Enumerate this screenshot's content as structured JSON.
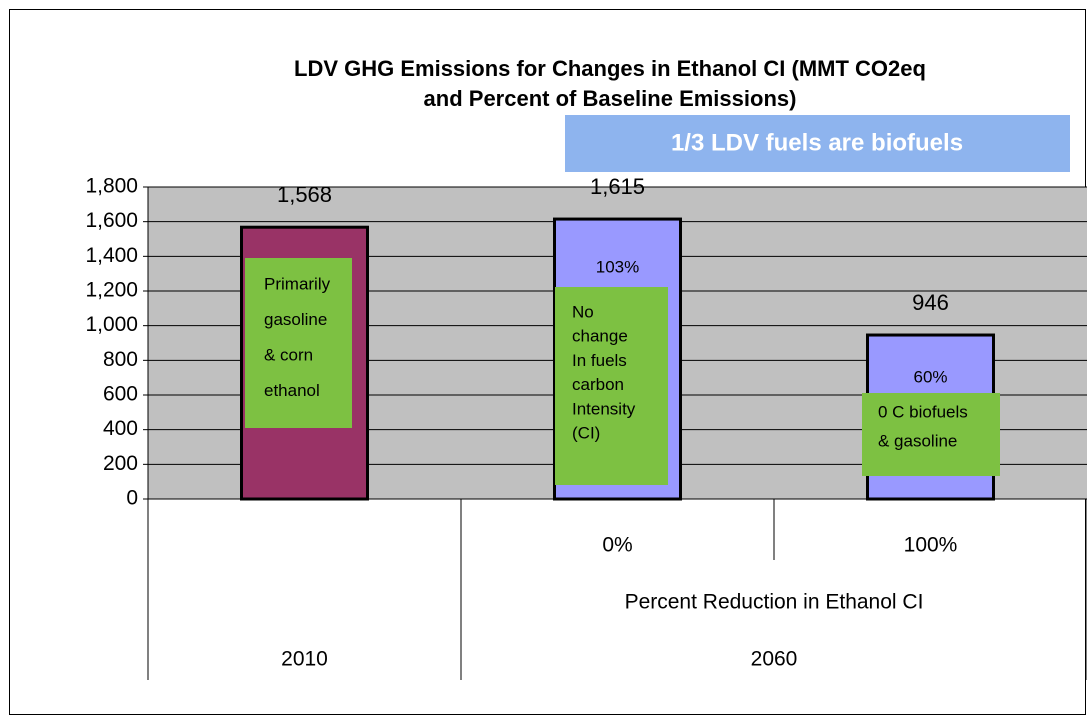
{
  "chart_data": {
    "type": "bar",
    "title": "LDV GHG Emissions for Changes in Ethanol CI (MMT CO2eq and Percent of Baseline Emissions)",
    "title_lines": [
      "LDV GHG Emissions for Changes in Ethanol CI (MMT CO2eq",
      "and Percent of Baseline Emissions)"
    ],
    "banner": "1/3 LDV fuels are biofuels",
    "x_label": "Percent Reduction in Ethanol CI",
    "categories": [
      null,
      "0%",
      "100%"
    ],
    "group_labels": [
      "2010",
      "2060"
    ],
    "values": [
      1568,
      1615,
      946
    ],
    "value_labels": [
      "1,568",
      "1,615",
      "946"
    ],
    "colors": [
      "#993366",
      "#9999ff",
      "#9999ff"
    ],
    "percent_labels": [
      null,
      "103%",
      "60%"
    ],
    "annotations": [
      [
        "Primarily",
        "gasoline",
        "& corn",
        "ethanol"
      ],
      [
        "No",
        "change",
        "In fuels",
        "carbon",
        "Intensity",
        "(CI)"
      ],
      [
        "0  C  biofuels",
        "& gasoline"
      ]
    ],
    "ylim": [
      0,
      1800
    ],
    "yticks": [
      0,
      200,
      400,
      600,
      800,
      {
        "value": 1000,
        "label": "1,000"
      },
      {
        "value": 1200,
        "label": "1,200"
      },
      {
        "value": 1400,
        "label": "1,400"
      },
      {
        "value": 1600,
        "label": "1,600"
      },
      {
        "value": 1800,
        "label": "1,800"
      }
    ],
    "grid": true,
    "plot_background": "#c0c0c0"
  }
}
